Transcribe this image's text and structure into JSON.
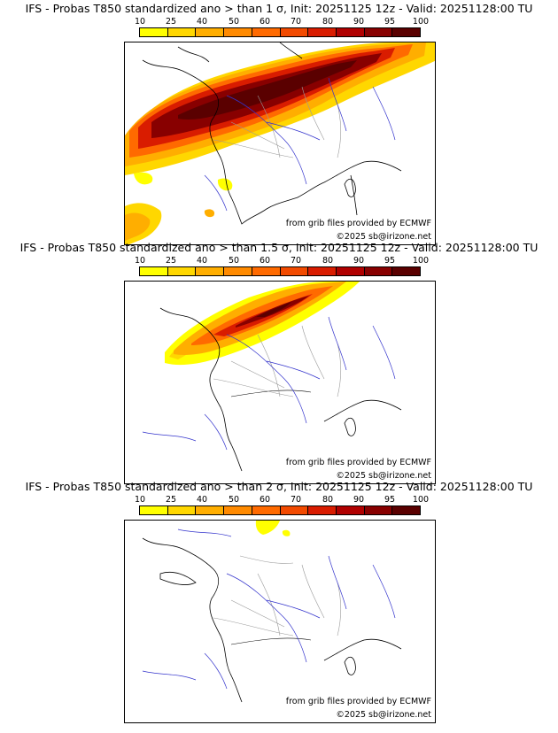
{
  "colorbar": {
    "labels": [
      "10",
      "25",
      "40",
      "50",
      "60",
      "70",
      "80",
      "90",
      "95",
      "100"
    ],
    "colors": [
      "#ffff00",
      "#ffd700",
      "#ffae00",
      "#ff8a00",
      "#ff6a00",
      "#f24a00",
      "#d91c00",
      "#b00000",
      "#880000",
      "#5a0000"
    ]
  },
  "panels": [
    {
      "title": "IFS - Probas T850  standardized ano > than 1 σ, Init: 20251125 12z - Valid: 20251128:00 TU",
      "credit_source": "from grib files provided by ECMWF",
      "credit_copyright": "©2025 sb@irizone.net"
    },
    {
      "title": "IFS - Probas T850  standardized ano > than 1.5 σ, Init: 20251125 12z - Valid: 20251128:00 TU",
      "credit_source": "from grib files provided by ECMWF",
      "credit_copyright": "©2025 sb@irizone.net"
    },
    {
      "title": "IFS - Probas T850  standardized ano > than 2 σ, Init: 20251125 12z - Valid: 20251128:00 TU",
      "credit_source": "from grib files provided by ECMWF",
      "credit_copyright": "©2025 sb@irizone.net"
    }
  ]
}
